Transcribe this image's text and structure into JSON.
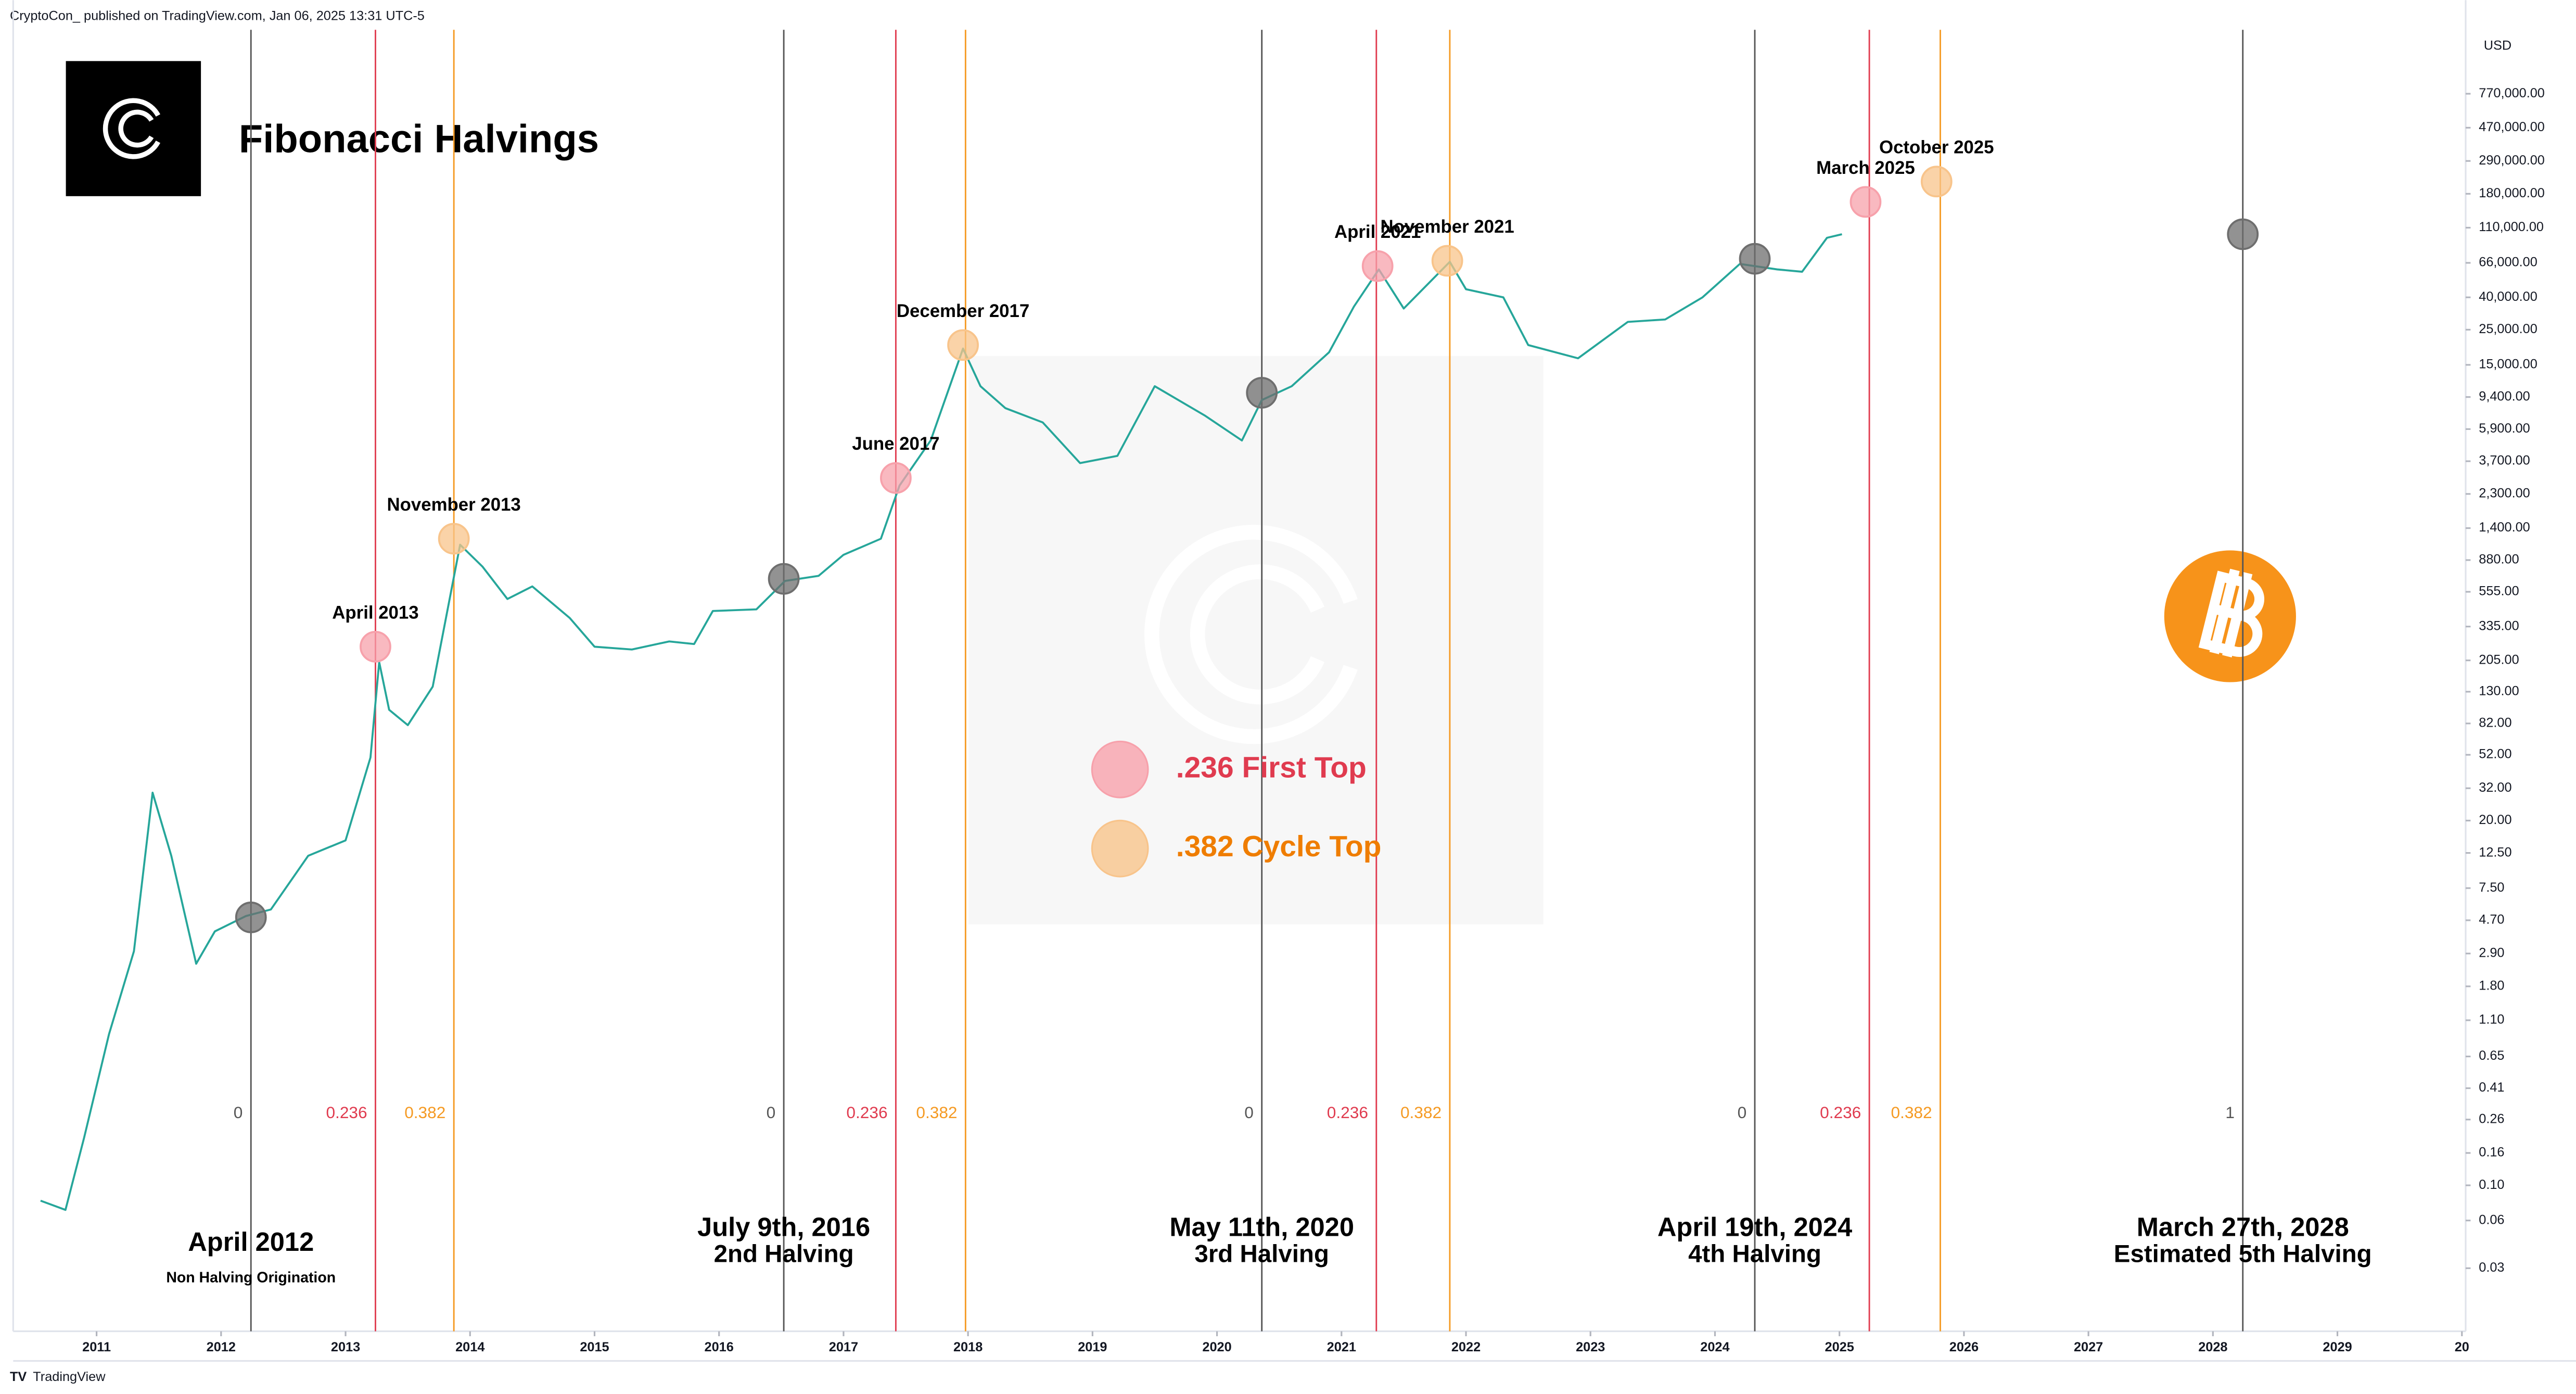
{
  "header": {
    "byline": "CryptoCon_ published on TradingView.com, Jan 06, 2025 13:31 UTC-5",
    "footer": "TradingView"
  },
  "chart_data": {
    "type": "line",
    "title": "Fibonacci Halvings",
    "currency": "USD",
    "log_scale": true,
    "xlim": [
      2010.33,
      2030.03
    ],
    "xticks": [
      2011,
      2012,
      2013,
      2014,
      2015,
      2016,
      2017,
      2018,
      2019,
      2020,
      2021,
      2022,
      2023,
      2024,
      2025,
      2026,
      2027,
      2028,
      2029,
      {
        "value": 2030,
        "label": "20"
      }
    ],
    "ylim": [
      0.012,
      1950000
    ],
    "yticks": [
      {
        "value": 770000,
        "label": "770,000.00"
      },
      {
        "value": 470000,
        "label": "470,000.00"
      },
      {
        "value": 290000,
        "label": "290,000.00"
      },
      {
        "value": 180000,
        "label": "180,000.00"
      },
      {
        "value": 110000,
        "label": "110,000.00"
      },
      {
        "value": 66000,
        "label": "66,000.00"
      },
      {
        "value": 40000,
        "label": "40,000.00"
      },
      {
        "value": 25000,
        "label": "25,000.00"
      },
      {
        "value": 15000,
        "label": "15,000.00"
      },
      {
        "value": 9400,
        "label": "9,400.00"
      },
      {
        "value": 5900,
        "label": "5,900.00"
      },
      {
        "value": 3700,
        "label": "3,700.00"
      },
      {
        "value": 2300,
        "label": "2,300.00"
      },
      {
        "value": 1400,
        "label": "1,400.00"
      },
      {
        "value": 880,
        "label": "880.00"
      },
      {
        "value": 555,
        "label": "555.00"
      },
      {
        "value": 335,
        "label": "335.00"
      },
      {
        "value": 205,
        "label": "205.00"
      },
      {
        "value": 130,
        "label": "130.00"
      },
      {
        "value": 82,
        "label": "82.00"
      },
      {
        "value": 52,
        "label": "52.00"
      },
      {
        "value": 32,
        "label": "32.00"
      },
      {
        "value": 20,
        "label": "20.00"
      },
      {
        "value": 12.5,
        "label": "12.50"
      },
      {
        "value": 7.5,
        "label": "7.50"
      },
      {
        "value": 4.7,
        "label": "4.70"
      },
      {
        "value": 2.9,
        "label": "2.90"
      },
      {
        "value": 1.8,
        "label": "1.80"
      },
      {
        "value": 1.1,
        "label": "1.10"
      },
      {
        "value": 0.65,
        "label": "0.65"
      },
      {
        "value": 0.41,
        "label": "0.41"
      },
      {
        "value": 0.26,
        "label": "0.26"
      },
      {
        "value": 0.16,
        "label": "0.16"
      },
      {
        "value": 0.1,
        "label": "0.10"
      },
      {
        "value": 0.06,
        "label": "0.06"
      },
      {
        "value": 0.03,
        "label": "0.03"
      }
    ],
    "series": [
      {
        "color": "#26a69a",
        "x": [
          2010.55,
          2010.75,
          2010.9,
          2011.1,
          2011.3,
          2011.45,
          2011.6,
          2011.8,
          2011.95,
          2012.2,
          2012.4,
          2012.7,
          2013.0,
          2013.2,
          2013.27,
          2013.35,
          2013.5,
          2013.7,
          2013.92,
          2014.1,
          2014.3,
          2014.5,
          2014.8,
          2015.0,
          2015.3,
          2015.6,
          2015.8,
          2015.95,
          2016.3,
          2016.53,
          2016.8,
          2017.0,
          2017.3,
          2017.45,
          2017.7,
          2017.96,
          2018.1,
          2018.3,
          2018.6,
          2018.9,
          2019.2,
          2019.5,
          2019.9,
          2020.2,
          2020.36,
          2020.6,
          2020.9,
          2021.1,
          2021.3,
          2021.5,
          2021.87,
          2022.0,
          2022.3,
          2022.5,
          2022.9,
          2023.3,
          2023.6,
          2023.9,
          2024.2,
          2024.5,
          2024.7,
          2024.9,
          2025.02
        ],
        "values": [
          0.08,
          0.07,
          0.2,
          0.9,
          3,
          30,
          12,
          2.5,
          4,
          5,
          5.5,
          12,
          15,
          50,
          200,
          100,
          80,
          140,
          1100,
          800,
          500,
          600,
          380,
          250,
          240,
          270,
          260,
          420,
          430,
          650,
          700,
          950,
          1200,
          2600,
          5000,
          19000,
          11000,
          8000,
          6500,
          3600,
          4000,
          11000,
          7200,
          5000,
          9000,
          11000,
          18000,
          35000,
          60000,
          34000,
          67000,
          45000,
          40000,
          20000,
          16500,
          28000,
          29000,
          40000,
          65000,
          60000,
          58000,
          95000,
          100000
        ]
      }
    ],
    "verticals": [
      {
        "x": 2012.24,
        "label": "0",
        "color": "#555555"
      },
      {
        "x": 2013.24,
        "label": "0.236",
        "color": "#e03b4f"
      },
      {
        "x": 2013.87,
        "label": "0.382",
        "color": "#f59a23"
      },
      {
        "x": 2016.52,
        "label": "0",
        "color": "#555555"
      },
      {
        "x": 2017.42,
        "label": "0.236",
        "color": "#e03b4f"
      },
      {
        "x": 2017.98,
        "label": "0.382",
        "color": "#f59a23"
      },
      {
        "x": 2020.36,
        "label": "0",
        "color": "#555555"
      },
      {
        "x": 2021.28,
        "label": "0.236",
        "color": "#e03b4f"
      },
      {
        "x": 2021.87,
        "label": "0.382",
        "color": "#f59a23"
      },
      {
        "x": 2024.32,
        "label": "0",
        "color": "#555555"
      },
      {
        "x": 2025.24,
        "label": "0.236",
        "color": "#e03b4f"
      },
      {
        "x": 2025.81,
        "label": "0.382",
        "color": "#f59a23"
      },
      {
        "x": 2028.24,
        "label": "1",
        "color": "#555555"
      }
    ],
    "markers": [
      {
        "x": 2012.24,
        "y": 4.9,
        "color": "#6e6e6e"
      },
      {
        "x": 2013.24,
        "y": 250,
        "label": "April 2013",
        "color": "#f7a1ab"
      },
      {
        "x": 2013.87,
        "y": 1200,
        "label": "November 2013",
        "color": "#f8c48b"
      },
      {
        "x": 2016.52,
        "y": 670,
        "color": "#6e6e6e"
      },
      {
        "x": 2017.42,
        "y": 2900,
        "label": "June 2017",
        "color": "#f7a1ab"
      },
      {
        "x": 2017.96,
        "y": 20000,
        "label": "December 2017",
        "color": "#f8c48b"
      },
      {
        "x": 2020.36,
        "y": 10000,
        "color": "#6e6e6e"
      },
      {
        "x": 2021.29,
        "y": 63000,
        "label": "April 2021",
        "color": "#f7a1ab"
      },
      {
        "x": 2021.85,
        "y": 68000,
        "label": "November 2021",
        "color": "#f8c48b"
      },
      {
        "x": 2024.32,
        "y": 70000,
        "color": "#6e6e6e"
      },
      {
        "x": 2025.21,
        "y": 160000,
        "label": "March 2025",
        "color": "#f7a1ab"
      },
      {
        "x": 2025.78,
        "y": 215000,
        "label": "October 2025",
        "color": "#f8c48b"
      },
      {
        "x": 2028.24,
        "y": 100000,
        "color": "#6e6e6e"
      }
    ],
    "halvings": [
      {
        "x": 2012.24,
        "title": "April 2012",
        "subtitle": "Non Halving Origination"
      },
      {
        "x": 2016.52,
        "title": "July 9th, 2016",
        "subtitle": "2nd Halving"
      },
      {
        "x": 2020.36,
        "title": "May 11th, 2020",
        "subtitle": "3rd Halving"
      },
      {
        "x": 2024.32,
        "title": "April 19th, 2024",
        "subtitle": "4th Halving"
      },
      {
        "x": 2028.24,
        "title": "March 27th, 2028",
        "subtitle": "Estimated 5th Halving"
      }
    ],
    "legend": [
      {
        "label": ".236 First Top",
        "color": "#f7a1ab",
        "text_color": "#e03b4f"
      },
      {
        "label": ".382 Cycle Top",
        "color": "#f8c48b",
        "text_color": "#ef7d00"
      }
    ]
  }
}
